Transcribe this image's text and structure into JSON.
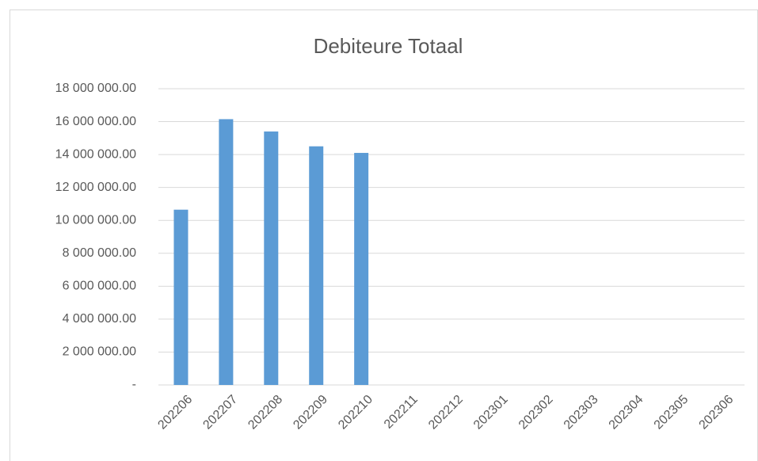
{
  "chart_data": {
    "type": "bar",
    "title": "Debiteure Totaal",
    "categories": [
      "202206",
      "202207",
      "202208",
      "202209",
      "202210",
      "202211",
      "202212",
      "202301",
      "202302",
      "202303",
      "202304",
      "202305",
      "202306"
    ],
    "values": [
      10650000,
      16150000,
      15400000,
      14500000,
      14100000,
      null,
      null,
      null,
      null,
      null,
      null,
      null,
      null
    ],
    "color": "#5b9bd5",
    "ylim": [
      0,
      18000000
    ],
    "yticks": [
      {
        "value": 0,
        "label": "-"
      },
      {
        "value": 2000000,
        "label": "2 000 000.00"
      },
      {
        "value": 4000000,
        "label": "4 000 000.00"
      },
      {
        "value": 6000000,
        "label": "6 000 000.00"
      },
      {
        "value": 8000000,
        "label": "8 000 000.00"
      },
      {
        "value": 10000000,
        "label": "10 000 000.00"
      },
      {
        "value": 12000000,
        "label": "12 000 000.00"
      },
      {
        "value": 14000000,
        "label": "14 000 000.00"
      },
      {
        "value": 16000000,
        "label": "16 000 000.00"
      },
      {
        "value": 18000000,
        "label": "18 000 000.00"
      }
    ],
    "grid": true
  }
}
